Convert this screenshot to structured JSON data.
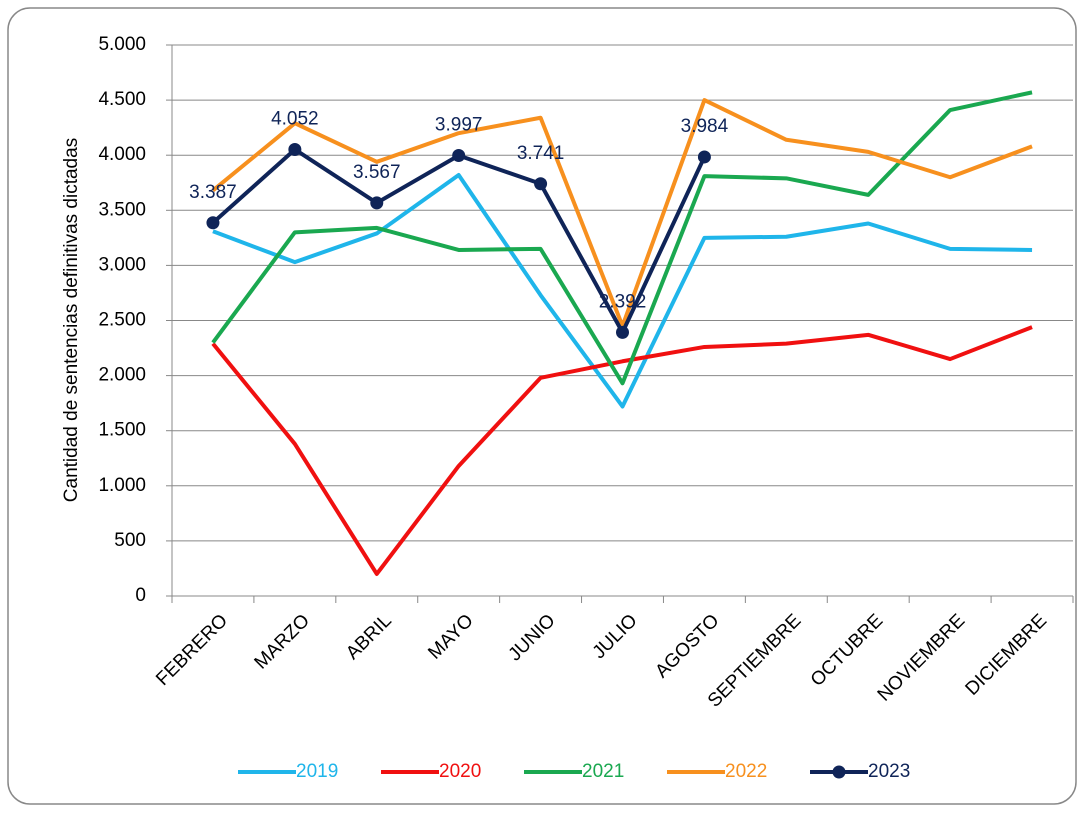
{
  "chart_data": {
    "type": "line",
    "y_label": "Cantidad de sentencias definitivas dictadas",
    "categories": [
      "FEBRERO",
      "MARZO",
      "ABRIL",
      "MAYO",
      "JUNIO",
      "JULIO",
      "AGOSTO",
      "SEPTIEMBRE",
      "OCTUBRE",
      "NOVIEMBRE",
      "DICIEMBRE"
    ],
    "series": [
      {
        "name": "2019",
        "color": "#1fb5ea",
        "values": [
          3310,
          3030,
          3290,
          3820,
          2730,
          1720,
          3250,
          3260,
          3380,
          3150,
          3140
        ]
      },
      {
        "name": "2020",
        "color": "#f01010",
        "values": [
          2290,
          1380,
          200,
          1180,
          1980,
          2130,
          2260,
          2290,
          2370,
          2150,
          2440
        ]
      },
      {
        "name": "2021",
        "color": "#1aa850",
        "values": [
          2300,
          3300,
          3340,
          3140,
          3150,
          1930,
          3810,
          3790,
          3640,
          4410,
          4570
        ]
      },
      {
        "name": "2022",
        "color": "#f7901e",
        "values": [
          3680,
          4290,
          3940,
          4200,
          4340,
          2450,
          4500,
          4140,
          4030,
          3800,
          4080
        ]
      },
      {
        "name": "2023",
        "color": "#0f2458",
        "markers": true,
        "values": [
          3387,
          4052,
          3567,
          3997,
          3741,
          2392,
          3984,
          null,
          null,
          null,
          null
        ],
        "value_labels": [
          "3.387",
          "4.052",
          "3.567",
          "3.997",
          "3.741",
          "2.392",
          "3.984",
          null,
          null,
          null,
          null
        ]
      }
    ],
    "ylim": [
      0,
      5000
    ],
    "yticks": [
      {
        "value": 0,
        "label": "0"
      },
      {
        "value": 500,
        "label": "500"
      },
      {
        "value": 1000,
        "label": "1.000"
      },
      {
        "value": 1500,
        "label": "1.500"
      },
      {
        "value": 2000,
        "label": "2.000"
      },
      {
        "value": 2500,
        "label": "2.500"
      },
      {
        "value": 3000,
        "label": "3.000"
      },
      {
        "value": 3500,
        "label": "3.500"
      },
      {
        "value": 4000,
        "label": "4.000"
      },
      {
        "value": 4500,
        "label": "4.500"
      },
      {
        "value": 5000,
        "label": "5.000"
      }
    ],
    "grid": true
  }
}
